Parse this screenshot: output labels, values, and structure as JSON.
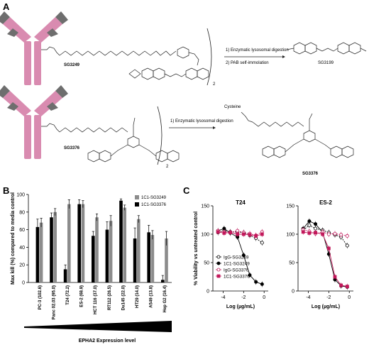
{
  "panel_a": {
    "letter": "A",
    "top": {
      "conjugate_label": "SG3249",
      "step1": "1) Enzymatic lysosomal digestion",
      "step2": "2) PAB self-immolation",
      "product_label": "SG3199",
      "subscript": "2"
    },
    "bottom": {
      "conjugate_label": "SG3376",
      "step1": "1) Enzymatic lysosomal digestion",
      "cysteine": "Cysteine",
      "product_label": "SG3376",
      "subscript": "2"
    }
  },
  "panel_b": {
    "letter": "B"
  },
  "panel_c": {
    "letter": "C"
  },
  "colors": {
    "antibody_pink": "#d98bb0",
    "antibody_gray": "#6e6e6e",
    "bar_black": "#000000",
    "bar_gray": "#8c8c8c",
    "series_red": "#c2185b"
  },
  "chart_data": [
    {
      "type": "bar",
      "ylabel": "Max kill (%) compared to media control",
      "xlabel": "EPHA2 Expression level",
      "ylim": [
        0,
        100
      ],
      "yticks": [
        0,
        20,
        40,
        60,
        80,
        100
      ],
      "categories": [
        "PC-3 (102.6)",
        "Panc 02.03 (95.0)",
        "T24 (72.2)",
        "ES-2 (68.9)",
        "HCT 116 (37.0)",
        "RT112 (26.5)",
        "Du145 (22.0)",
        "HT29 (14.0)",
        "A549 (13.8)",
        "Hep G2 (16.4)"
      ],
      "legend_placement": "top-right",
      "series": [
        {
          "name": "1C1-SG3249",
          "values": [
            68,
            80,
            89,
            89,
            74,
            70,
            85,
            72,
            54,
            50
          ],
          "errors": [
            5,
            4,
            5,
            4,
            4,
            6,
            3,
            4,
            5,
            8
          ]
        },
        {
          "name": "1C1-SG3376",
          "values": [
            63,
            74,
            15,
            89,
            53,
            60,
            93,
            50,
            57,
            3
          ],
          "errors": [
            9,
            5,
            5,
            5,
            5,
            9,
            2,
            12,
            8,
            5
          ]
        }
      ]
    },
    {
      "type": "line",
      "title": "T24",
      "ylabel": "% Viability vs untreated control",
      "xlabel": "Log (µg/mL)",
      "xlim": [
        -5,
        0.4
      ],
      "ylim": [
        0,
        150
      ],
      "xticks": [
        -4,
        -2,
        0
      ],
      "yticks": [
        0,
        50,
        100,
        150
      ],
      "legend_placement": "bottom-left",
      "series": [
        {
          "name": "IgG-SG3249",
          "x": [
            -4.5,
            -3.9,
            -3.3,
            -2.6,
            -2.0,
            -1.4,
            -0.8,
            -0.2
          ],
          "y": [
            103,
            106,
            104,
            104,
            103,
            98,
            93,
            85
          ]
        },
        {
          "name": "1C1-SG3249",
          "x": [
            -4.5,
            -3.9,
            -3.3,
            -2.6,
            -2.0,
            -1.4,
            -0.8,
            -0.2
          ],
          "y": [
            106,
            110,
            102,
            95,
            63,
            28,
            16,
            12
          ]
        },
        {
          "name": "IgG-SG3376",
          "x": [
            -4.5,
            -3.9,
            -3.3,
            -2.6,
            -2.0,
            -1.4,
            -0.8,
            -0.2
          ],
          "y": [
            106,
            104,
            103,
            106,
            103,
            101,
            98,
            104
          ]
        },
        {
          "name": "1C1-SG3376",
          "x": [
            -4.5,
            -3.9,
            -3.3,
            -2.6,
            -2.0,
            -1.4,
            -0.8,
            -0.2
          ],
          "y": [
            104,
            102,
            103,
            100,
            100,
            99,
            97,
            100
          ]
        }
      ]
    },
    {
      "type": "line",
      "title": "ES-2",
      "xlabel": "Log (µg/mL)",
      "xlim": [
        -5,
        0.4
      ],
      "ylim": [
        0,
        150
      ],
      "xticks": [
        -4,
        -2,
        0
      ],
      "yticks": [
        0,
        50,
        100,
        150
      ],
      "series": [
        {
          "name": "IgG-SG3249",
          "x": [
            -4.5,
            -3.9,
            -3.3,
            -2.6,
            -2.0,
            -1.4,
            -0.8,
            -0.2
          ],
          "y": [
            107,
            116,
            110,
            107,
            103,
            99,
            95,
            80
          ]
        },
        {
          "name": "1C1-SG3249",
          "x": [
            -4.5,
            -3.9,
            -3.3,
            -2.6,
            -2.0,
            -1.4,
            -0.8,
            -0.2
          ],
          "y": [
            110,
            123,
            118,
            103,
            65,
            20,
            9,
            7
          ]
        },
        {
          "name": "IgG-SG3376",
          "x": [
            -4.5,
            -3.9,
            -3.3,
            -2.6,
            -2.0,
            -1.4,
            -0.8,
            -0.2
          ],
          "y": [
            108,
            105,
            101,
            104,
            100,
            101,
            99,
            97
          ]
        },
        {
          "name": "1C1-SG3376",
          "x": [
            -4.5,
            -3.9,
            -3.3,
            -2.6,
            -2.0,
            -1.4,
            -0.8,
            -0.2
          ],
          "y": [
            104,
            102,
            103,
            100,
            75,
            25,
            10,
            8
          ]
        }
      ]
    }
  ]
}
